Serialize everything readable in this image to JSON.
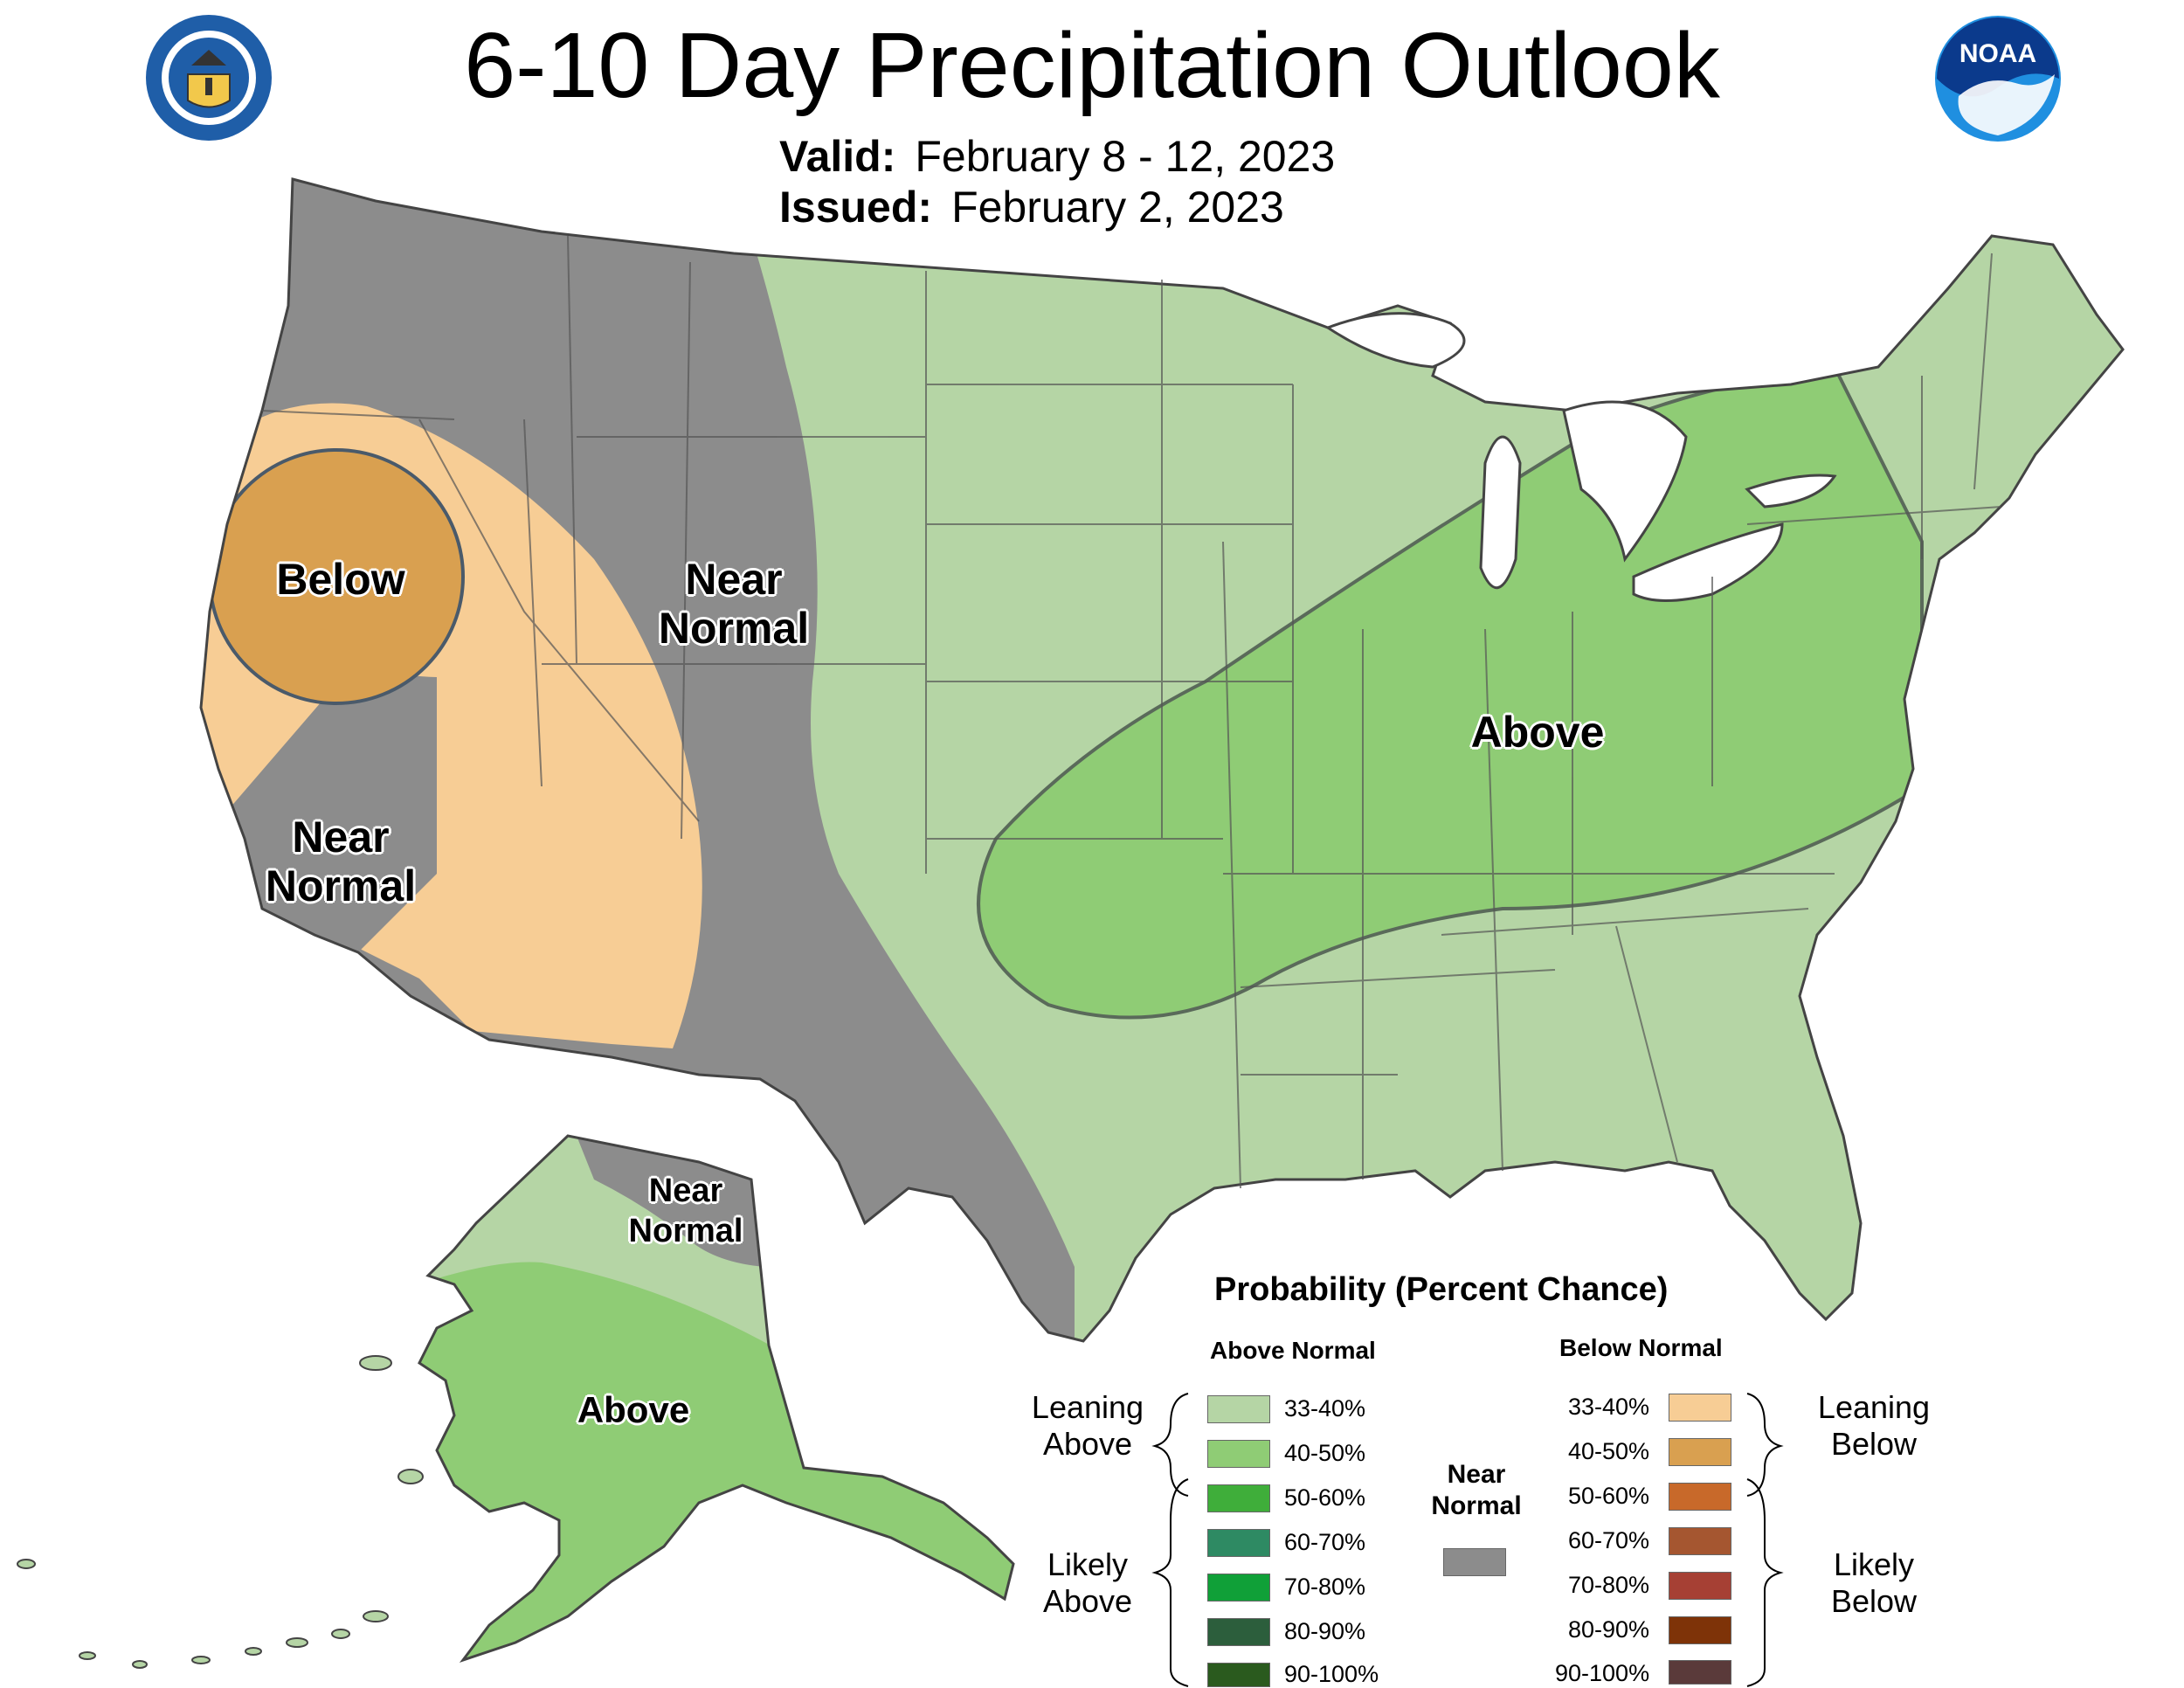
{
  "header": {
    "title": "6-10 Day Precipitation Outlook",
    "valid_label": "Valid:",
    "valid_value": "February 8 - 12, 2023",
    "issued_label": "Issued:",
    "issued_value": "February 2, 2023"
  },
  "logos": {
    "commerce_seal": "department-of-commerce-seal",
    "noaa_logo": "NOAA"
  },
  "map_labels": {
    "west_below": "Below",
    "west_near_normal": "Near\nNormal",
    "rockies_near_normal": "Near\nNormal",
    "east_above": "Above",
    "alaska_near_normal": "Near\nNormal",
    "alaska_above": "Above"
  },
  "colors": {
    "near_normal": "#8c8c8c",
    "leaning_above": "#b5d5a5",
    "above_40_50": "#8fcc75",
    "leaning_below": "#f7cd95",
    "below_40_50": "#d9a050"
  },
  "legend": {
    "title": "Probability (Percent Chance)",
    "above_heading": "Above Normal",
    "below_heading": "Below Normal",
    "leaning_above": "Leaning\nAbove",
    "likely_above": "Likely\nAbove",
    "leaning_below": "Leaning\nBelow",
    "likely_below": "Likely\nBelow",
    "near_normal": "Near\nNormal",
    "above_items": [
      {
        "label": "33-40%",
        "color": "#b5d5a5"
      },
      {
        "label": "40-50%",
        "color": "#8fcc75"
      },
      {
        "label": "50-60%",
        "color": "#3fae3a"
      },
      {
        "label": "60-70%",
        "color": "#2e8a63"
      },
      {
        "label": "70-80%",
        "color": "#10a038"
      },
      {
        "label": "80-90%",
        "color": "#2c5e3c"
      },
      {
        "label": "90-100%",
        "color": "#2a5a1e"
      }
    ],
    "below_items": [
      {
        "label": "33-40%",
        "color": "#f7cd95"
      },
      {
        "label": "40-50%",
        "color": "#d9a050"
      },
      {
        "label": "50-60%",
        "color": "#c8692a"
      },
      {
        "label": "60-70%",
        "color": "#a55630"
      },
      {
        "label": "70-80%",
        "color": "#a64034"
      },
      {
        "label": "80-90%",
        "color": "#7e3308"
      },
      {
        "label": "90-100%",
        "color": "#5a3a3a"
      }
    ],
    "near_normal_color": "#8c8c8c"
  }
}
